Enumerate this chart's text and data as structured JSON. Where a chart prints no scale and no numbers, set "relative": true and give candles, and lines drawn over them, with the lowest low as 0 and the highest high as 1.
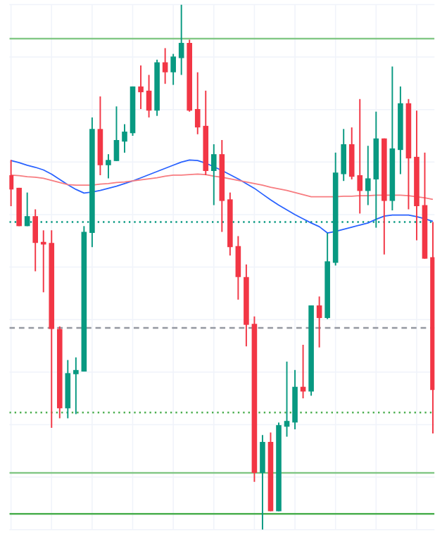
{
  "chart_data": {
    "type": "candlestick",
    "relative": true,
    "grid": true,
    "categories": [
      null,
      null,
      null,
      null,
      null,
      null,
      null,
      null,
      null,
      null,
      null,
      null,
      null,
      null,
      null,
      null,
      null,
      null,
      null,
      null,
      null,
      null,
      null,
      null,
      null,
      null,
      null,
      null,
      null,
      null,
      null,
      null,
      null,
      null,
      null,
      null,
      null,
      null,
      null,
      null,
      null,
      null,
      null,
      null,
      null,
      null,
      null,
      null,
      null,
      null,
      null,
      null,
      null
    ],
    "series": [
      {
        "type": "line",
        "color": "#2962ff",
        "values": [
          0.703,
          0.699,
          0.694,
          0.69,
          0.685,
          0.677,
          0.667,
          0.657,
          0.648,
          0.641,
          0.643,
          0.646,
          0.65,
          0.654,
          0.659,
          0.664,
          0.67,
          0.676,
          0.682,
          0.688,
          0.694,
          0.7,
          0.704,
          0.703,
          0.698,
          0.691,
          0.684,
          0.676,
          0.668,
          0.659,
          0.65,
          0.639,
          0.628,
          0.618,
          0.609,
          0.6,
          0.592,
          0.584,
          0.577,
          0.565,
          0.568,
          0.572,
          0.576,
          0.58,
          0.584,
          0.591,
          0.597,
          0.599,
          0.599,
          0.599,
          0.596,
          0.592,
          0.587
        ]
      },
      {
        "type": "line",
        "color": "#f77c80",
        "values": [
          0.675,
          0.674,
          0.672,
          0.671,
          0.669,
          0.665,
          0.661,
          0.657,
          0.656,
          0.656,
          0.656,
          0.658,
          0.659,
          0.661,
          0.662,
          0.664,
          0.666,
          0.668,
          0.67,
          0.673,
          0.675,
          0.675,
          0.676,
          0.677,
          0.676,
          0.673,
          0.671,
          0.668,
          0.665,
          0.662,
          0.659,
          0.656,
          0.652,
          0.649,
          0.646,
          0.642,
          0.638,
          0.634,
          0.634,
          0.634,
          0.634,
          0.635,
          0.635,
          0.636,
          0.636,
          0.637,
          0.637,
          0.637,
          0.637,
          0.636,
          0.634,
          0.632,
          0.629
        ]
      },
      {
        "ohlc": [
          [
            0.675,
            0.704,
            0.616,
            0.648
          ],
          [
            0.651,
            0.651,
            0.578,
            0.578
          ],
          [
            0.578,
            0.642,
            0.578,
            0.597
          ],
          [
            0.597,
            0.61,
            0.492,
            0.546
          ],
          [
            0.548,
            0.57,
            0.452,
            0.543
          ],
          [
            0.546,
            0.57,
            0.194,
            0.382
          ],
          [
            0.382,
            0.387,
            0.212,
            0.231
          ],
          [
            0.231,
            0.323,
            0.212,
            0.298
          ],
          [
            0.296,
            0.328,
            0.22,
            0.304
          ],
          [
            0.301,
            0.578,
            0.301,
            0.567
          ],
          [
            0.565,
            0.785,
            0.538,
            0.763
          ],
          [
            0.763,
            0.825,
            0.675,
            0.694
          ],
          [
            0.694,
            0.715,
            0.669,
            0.704
          ],
          [
            0.702,
            0.806,
            0.702,
            0.742
          ],
          [
            0.739,
            0.772,
            0.718,
            0.758
          ],
          [
            0.755,
            0.844,
            0.75,
            0.844
          ],
          [
            0.844,
            0.884,
            0.801,
            0.833
          ],
          [
            0.836,
            0.866,
            0.785,
            0.798
          ],
          [
            0.798,
            0.895,
            0.788,
            0.89
          ],
          [
            0.89,
            0.917,
            0.849,
            0.871
          ],
          [
            0.871,
            0.906,
            0.847,
            0.901
          ],
          [
            0.898,
            1,
            0.866,
            0.927
          ],
          [
            0.927,
            0.933,
            0.796,
            0.798
          ],
          [
            0.801,
            0.871,
            0.753,
            0.766
          ],
          [
            0.769,
            0.836,
            0.675,
            0.683
          ],
          [
            0.683,
            0.734,
            0.618,
            0.715
          ],
          [
            0.715,
            0.742,
            0.567,
            0.626
          ],
          [
            0.629,
            0.642,
            0.522,
            0.538
          ],
          [
            0.54,
            0.559,
            0.438,
            0.481
          ],
          [
            0.481,
            0.505,
            0.349,
            0.39
          ],
          [
            0.392,
            0.406,
            0.091,
            0.108
          ],
          [
            0.108,
            0.18,
            0,
            0.167
          ],
          [
            0.167,
            0.185,
            0.035,
            0.035
          ],
          [
            0.035,
            0.204,
            0.035,
            0.199
          ],
          [
            0.196,
            0.32,
            0.177,
            0.207
          ],
          [
            0.204,
            0.304,
            0.191,
            0.272
          ],
          [
            0.272,
            0.352,
            0.25,
            0.263
          ],
          [
            0.263,
            0.427,
            0.255,
            0.427
          ],
          [
            0.427,
            0.444,
            0.347,
            0.403
          ],
          [
            0.403,
            0.565,
            0.401,
            0.511
          ],
          [
            0.508,
            0.718,
            0.503,
            0.68
          ],
          [
            0.677,
            0.763,
            0.664,
            0.734
          ],
          [
            0.734,
            0.766,
            0.667,
            0.672
          ],
          [
            0.675,
            0.82,
            0.602,
            0.645
          ],
          [
            0.645,
            0.731,
            0.618,
            0.669
          ],
          [
            0.667,
            0.796,
            0.575,
            0.745
          ],
          [
            0.745,
            0.745,
            0.524,
            0.626
          ],
          [
            0.626,
            0.882,
            0.608,
            0.726
          ],
          [
            0.723,
            0.844,
            0.677,
            0.812
          ],
          [
            0.812,
            0.82,
            0.61,
            0.707
          ],
          [
            0.71,
            0.798,
            0.551,
            0.616
          ],
          [
            0.618,
            0.718,
            0.516,
            0.516
          ],
          [
            0.519,
            0.586,
            0.183,
            0.266
          ]
        ],
        "colors": [
          "#f23645",
          "#f23645",
          "#089981",
          "#f23645",
          "#f23645",
          "#f23645",
          "#f23645",
          "#089981",
          "#089981",
          "#089981",
          "#089981",
          "#f23645",
          "#089981",
          "#089981",
          "#089981",
          "#089981",
          "#f23645",
          "#f23645",
          "#089981",
          "#f23645",
          "#089981",
          "#089981",
          "#f23645",
          "#f23645",
          "#f23645",
          "#089981",
          "#f23645",
          "#f23645",
          "#f23645",
          "#f23645",
          "#f23645",
          "#089981",
          "#f23645",
          "#089981",
          "#089981",
          "#089981",
          "#f23645",
          "#089981",
          "#f23645",
          "#089981",
          "#089981",
          "#089981",
          "#f23645",
          "#f23645",
          "#089981",
          "#089981",
          "#f23645",
          "#089981",
          "#089981",
          "#f23645",
          "#f23645",
          "#f23645",
          "#f23645"
        ]
      }
    ],
    "ref_lines": [
      {
        "axis": "y",
        "value": 0.935,
        "color": "#81c784",
        "line_style": "solid"
      },
      {
        "axis": "y",
        "value": 0.586,
        "color": "#089981",
        "line_style": "dotted"
      },
      {
        "axis": "y",
        "value": 0.384,
        "color": "#9598a1",
        "line_style": "dashed"
      },
      {
        "axis": "y",
        "value": 0.223,
        "color": "#4caf50",
        "line_style": "dotted"
      },
      {
        "axis": "y",
        "value": 0.108,
        "color": "#81c784",
        "line_style": "solid"
      },
      {
        "axis": "y",
        "value": 0.03,
        "color": "#4caf50",
        "line_style": "solid"
      }
    ]
  }
}
